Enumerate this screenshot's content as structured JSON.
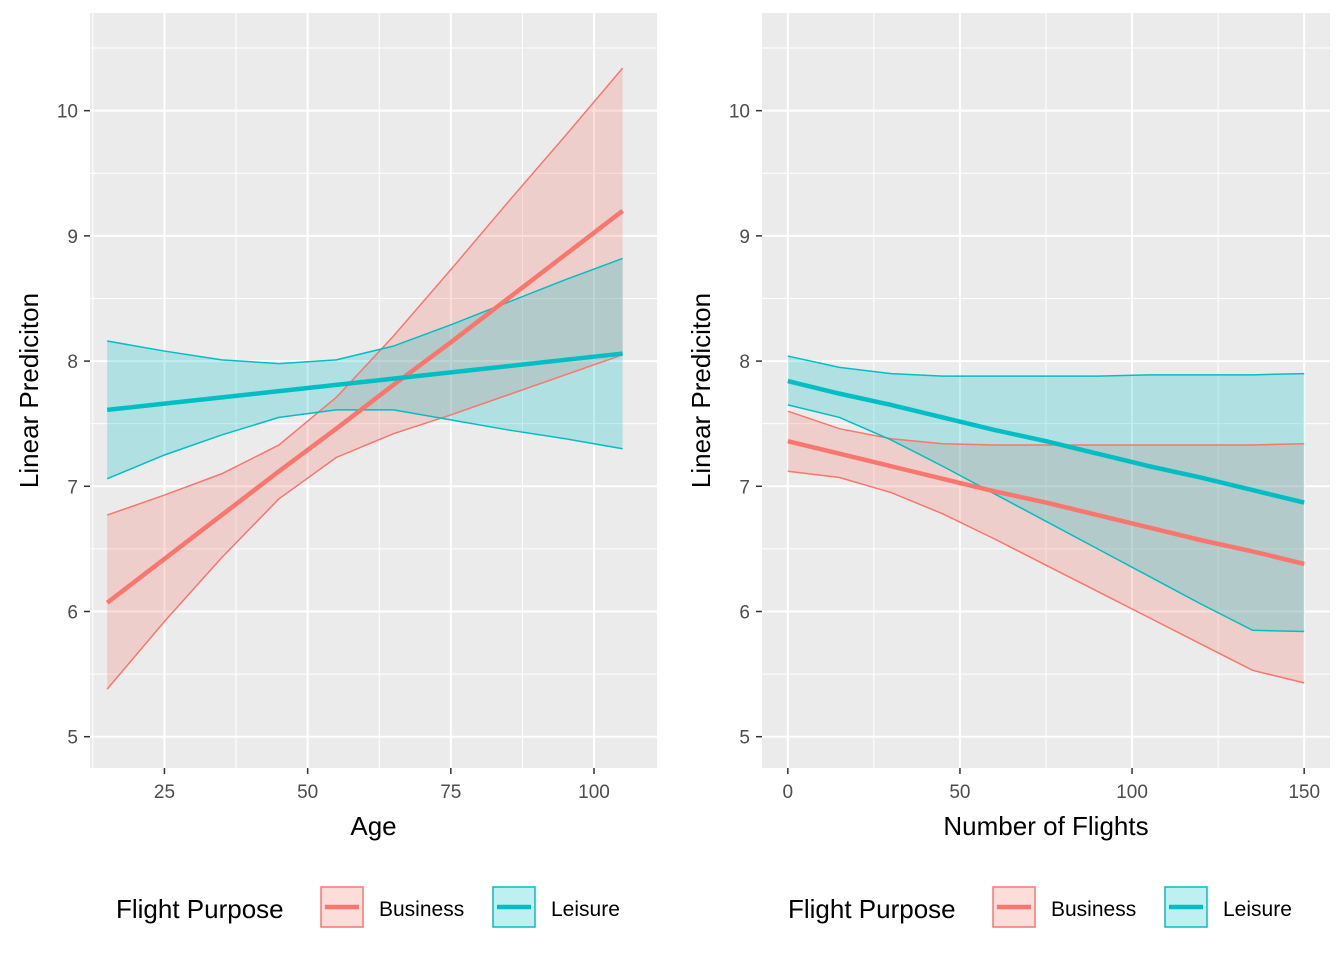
{
  "chart_data": [
    {
      "type": "line",
      "title": "",
      "xlabel": "Age",
      "ylabel": "Linear Prediciton",
      "xlim": [
        12,
        111
      ],
      "ylim": [
        4.75,
        10.78
      ],
      "x_ticks": [
        25,
        50,
        75,
        100
      ],
      "y_ticks": [
        5,
        6,
        7,
        8,
        9,
        10
      ],
      "x_tick_labels": [
        "25",
        "50",
        "75",
        "100"
      ],
      "y_tick_labels": [
        "5",
        "6",
        "7",
        "8",
        "9",
        "10"
      ],
      "grid": true,
      "legend": {
        "title": "Flight Purpose",
        "position": "bottom",
        "entries": [
          "Business",
          "Leisure"
        ]
      },
      "series": [
        {
          "name": "Business",
          "color": "#F8766D",
          "x": [
            15,
            25,
            35,
            45,
            55,
            65,
            75,
            85,
            95,
            105
          ],
          "fit": [
            6.07,
            6.42,
            6.77,
            7.12,
            7.46,
            7.81,
            8.15,
            8.5,
            8.85,
            9.2
          ],
          "lower": [
            5.38,
            5.92,
            6.43,
            6.9,
            7.23,
            7.42,
            7.57,
            7.73,
            7.89,
            8.05
          ],
          "upper": [
            6.77,
            6.93,
            7.1,
            7.33,
            7.71,
            8.2,
            8.73,
            9.27,
            9.8,
            10.34
          ]
        },
        {
          "name": "Leisure",
          "color": "#00BFC4",
          "x": [
            15,
            25,
            35,
            45,
            55,
            65,
            75,
            85,
            95,
            105
          ],
          "fit": [
            7.61,
            7.66,
            7.71,
            7.76,
            7.81,
            7.86,
            7.91,
            7.96,
            8.01,
            8.06
          ],
          "lower": [
            7.06,
            7.25,
            7.41,
            7.55,
            7.61,
            7.61,
            7.53,
            7.45,
            7.38,
            7.3
          ],
          "upper": [
            8.16,
            8.08,
            8.01,
            7.98,
            8.01,
            8.12,
            8.29,
            8.47,
            8.65,
            8.82
          ]
        }
      ]
    },
    {
      "type": "line",
      "title": "",
      "xlabel": "Number of Flights",
      "ylabel": "Linear Prediciton",
      "xlim": [
        -7.5,
        157.5
      ],
      "ylim": [
        4.75,
        10.78
      ],
      "x_ticks": [
        0,
        50,
        100,
        150
      ],
      "y_ticks": [
        5,
        6,
        7,
        8,
        9,
        10
      ],
      "x_tick_labels": [
        "0",
        "50",
        "100",
        "150"
      ],
      "y_tick_labels": [
        "5",
        "6",
        "7",
        "8",
        "9",
        "10"
      ],
      "grid": true,
      "legend": {
        "title": "Flight Purpose",
        "position": "bottom",
        "entries": [
          "Business",
          "Leisure"
        ]
      },
      "series": [
        {
          "name": "Business",
          "color": "#F8766D",
          "x": [
            0,
            15,
            30,
            45,
            60,
            75,
            90,
            105,
            120,
            135,
            150
          ],
          "fit": [
            7.36,
            7.26,
            7.16,
            7.06,
            6.96,
            6.87,
            6.77,
            6.67,
            6.57,
            6.48,
            6.38
          ],
          "lower": [
            7.12,
            7.07,
            6.95,
            6.78,
            6.58,
            6.37,
            6.16,
            5.95,
            5.74,
            5.53,
            5.43
          ],
          "upper": [
            7.6,
            7.46,
            7.38,
            7.34,
            7.33,
            7.33,
            7.33,
            7.33,
            7.33,
            7.33,
            7.34
          ]
        },
        {
          "name": "Leisure",
          "color": "#00BFC4",
          "x": [
            0,
            15,
            30,
            45,
            60,
            75,
            90,
            105,
            120,
            135,
            150
          ],
          "fit": [
            7.84,
            7.74,
            7.65,
            7.55,
            7.45,
            7.36,
            7.26,
            7.16,
            7.07,
            6.97,
            6.87
          ],
          "lower": [
            7.65,
            7.55,
            7.37,
            7.16,
            6.94,
            6.72,
            6.5,
            6.28,
            6.06,
            5.85,
            5.84
          ],
          "upper": [
            8.04,
            7.95,
            7.9,
            7.88,
            7.88,
            7.88,
            7.88,
            7.89,
            7.89,
            7.89,
            7.9
          ]
        }
      ]
    }
  ]
}
